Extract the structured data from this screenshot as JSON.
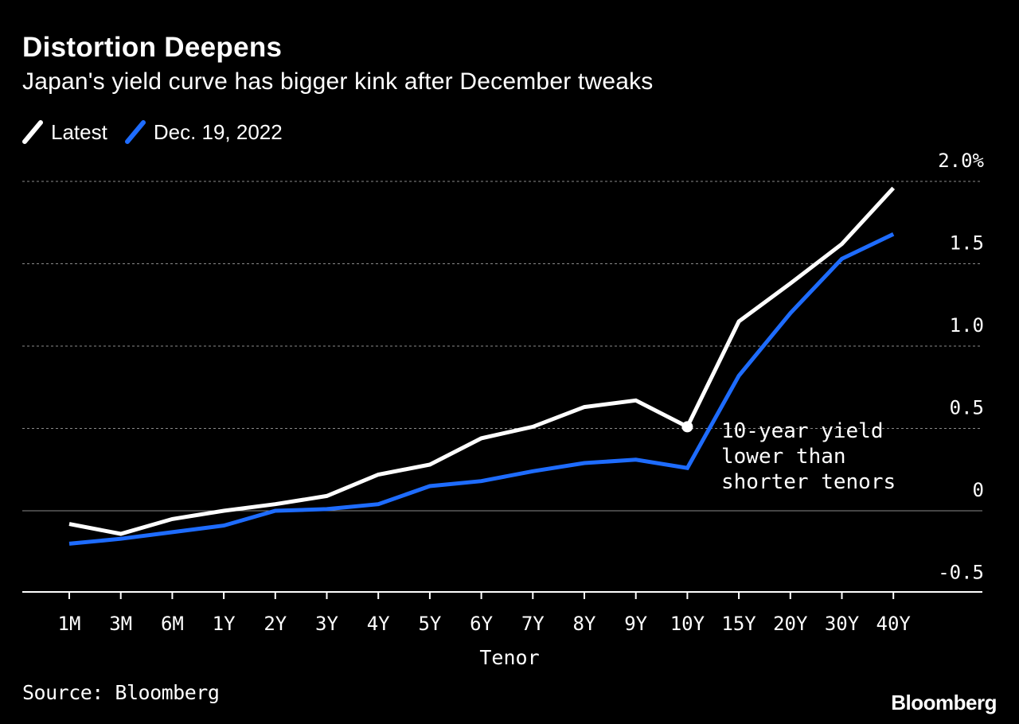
{
  "header": {
    "title": "Distortion Deepens",
    "subtitle": "Japan's yield curve has bigger kink after December tweaks"
  },
  "legend": [
    {
      "label": "Latest",
      "color": "#ffffff"
    },
    {
      "label": "Dec. 19, 2022",
      "color": "#1e6cff"
    }
  ],
  "footer": {
    "source": "Source: Bloomberg",
    "brand": "Bloomberg"
  },
  "chart_data": {
    "type": "line",
    "title": "Distortion Deepens",
    "subtitle": "Japan's yield curve has bigger kink after December tweaks",
    "xlabel": "Tenor",
    "ylabel": "",
    "categories": [
      "1M",
      "3M",
      "6M",
      "1Y",
      "2Y",
      "3Y",
      "4Y",
      "5Y",
      "6Y",
      "7Y",
      "8Y",
      "9Y",
      "10Y",
      "15Y",
      "20Y",
      "30Y",
      "40Y"
    ],
    "yticks": [
      {
        "value": 2.0,
        "label": "2.0%"
      },
      {
        "value": 1.5,
        "label": "1.5"
      },
      {
        "value": 1.0,
        "label": "1.0"
      },
      {
        "value": 0.5,
        "label": "0.5"
      },
      {
        "value": 0,
        "label": "0"
      },
      {
        "value": -0.5,
        "label": "-0.5"
      }
    ],
    "ylim": [
      -0.5,
      2.0
    ],
    "grid": true,
    "legend_position": "top-left",
    "series": [
      {
        "name": "Latest",
        "color": "#ffffff",
        "values": [
          -0.08,
          -0.14,
          -0.05,
          0.0,
          0.04,
          0.09,
          0.22,
          0.28,
          0.44,
          0.51,
          0.63,
          0.67,
          0.51,
          1.15,
          1.38,
          1.62,
          1.96
        ]
      },
      {
        "name": "Dec. 19, 2022",
        "color": "#1e6cff",
        "values": [
          -0.2,
          -0.17,
          -0.13,
          -0.09,
          0.0,
          0.01,
          0.04,
          0.15,
          0.18,
          0.24,
          0.29,
          0.31,
          0.26,
          0.82,
          1.2,
          1.53,
          1.68
        ]
      }
    ],
    "annotation": {
      "lines": [
        "10-year yield",
        "lower than",
        "shorter tenors"
      ],
      "category": "10Y",
      "series": "Latest"
    }
  }
}
